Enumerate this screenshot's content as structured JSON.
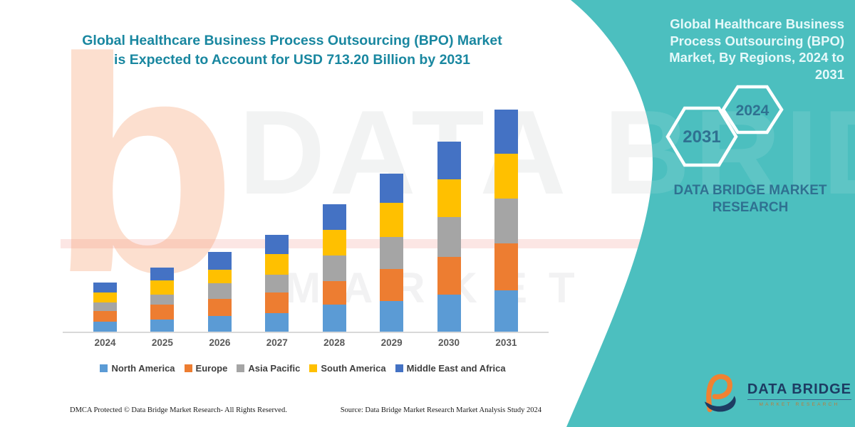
{
  "colors": {
    "teal_panel": "#4CBFBF",
    "main_title": "#1987A0",
    "panel_title": "#E6F9FA",
    "steel_blue": "#2F7191",
    "logo_navy": "#1D3C63",
    "logo_orange": "#F08232",
    "axis_gray": "#d9d9d9"
  },
  "main": {
    "title_line1": "Global Healthcare Business Process Outsourcing (BPO) Market",
    "title_line2": "is Expected to Account for USD 713.20 Billion by 2031",
    "footer_left": "DMCA Protected © Data Bridge Market Research-  All Rights Reserved.",
    "footer_right": "Source: Data Bridge Market Research  Market Analysis Study 2024",
    "watermark_text": "DATA BRIDGE",
    "watermark_subtext": "MARKET RESEARCH",
    "watermark_letter": "b"
  },
  "chart_data": {
    "type": "bar",
    "stacked": true,
    "title": "Global Healthcare Business Process Outsourcing (BPO) Market is Expected to Account for USD 713.20 Billion by 2031",
    "unit": "USD Billion",
    "categories": [
      "2024",
      "2025",
      "2026",
      "2027",
      "2028",
      "2029",
      "2030",
      "2031"
    ],
    "series": [
      {
        "name": "North America",
        "color": "#5B9BD5",
        "values": [
          31,
          38,
          50,
          60,
          88,
          98,
          119,
          133.2
        ]
      },
      {
        "name": "Europe",
        "color": "#ED7D31",
        "values": [
          35,
          48,
          56,
          65,
          74,
          104,
          122,
          150
        ]
      },
      {
        "name": "Asia Pacific",
        "color": "#A5A5A5",
        "values": [
          27,
          34,
          49,
          57,
          82,
          103,
          126,
          145
        ]
      },
      {
        "name": "South America",
        "color": "#FFC000",
        "values": [
          33,
          45,
          44,
          68,
          82,
          109,
          123,
          143
        ]
      },
      {
        "name": "Middle East and Africa",
        "color": "#4472C4",
        "values": [
          31,
          40,
          58,
          60,
          83,
          94,
          120,
          142
        ]
      }
    ],
    "totals": [
      157,
      205,
      257,
      310,
      409,
      508,
      610,
      713.2
    ],
    "ylim": [
      0,
      750
    ],
    "grid": false,
    "y_axis_labels": false,
    "legend_position": "bottom"
  },
  "right_panel": {
    "title_lines": [
      "Global Healthcare Business",
      "Process Outsourcing (BPO)",
      "Market, By Regions, 2024 to",
      "2031"
    ],
    "hexagons": [
      {
        "year": "2031"
      },
      {
        "year": "2024"
      }
    ],
    "brand_text_line1": "DATA BRIDGE MARKET",
    "brand_text_line2": "RESEARCH",
    "logo": {
      "name": "DATA BRIDGE",
      "tagline": "MARKET RESEARCH"
    }
  }
}
